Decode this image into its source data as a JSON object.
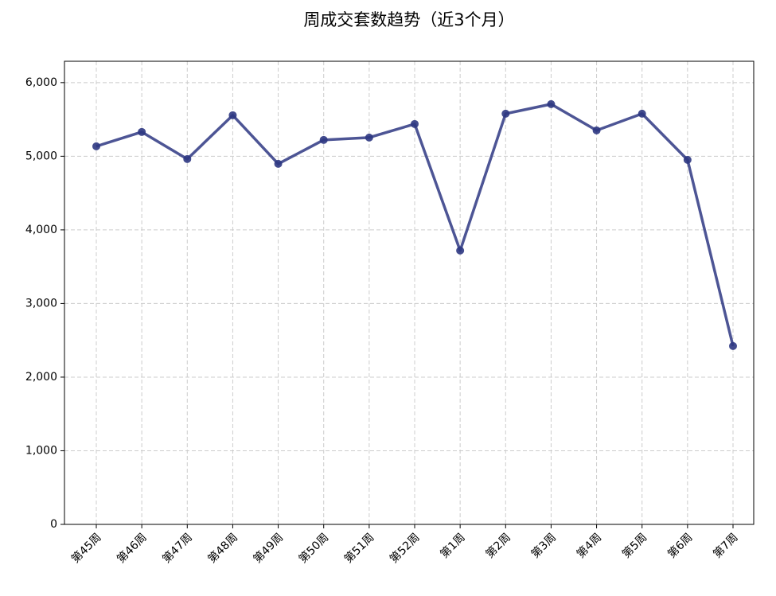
{
  "chart_data": {
    "type": "line",
    "title": "周成交套数趋势（近3个月）",
    "categories": [
      "第45周",
      "第46周",
      "第47周",
      "第48周",
      "第49周",
      "第50周",
      "第51周",
      "第52周",
      "第1周",
      "第2周",
      "第3周",
      "第4周",
      "第5周",
      "第6周",
      "第7周"
    ],
    "series": [
      {
        "name": "周成交套数",
        "color": "#2e3782",
        "values": [
          5135,
          5330,
          4962,
          5557,
          4897,
          5222,
          5254,
          5438,
          3719,
          5578,
          5708,
          5351,
          5578,
          4951,
          2422
        ]
      }
    ],
    "ylim": [
      0,
      6290
    ],
    "yticks": [
      0,
      {
        "value": 1000,
        "label": "1,000"
      },
      {
        "value": 2000,
        "label": "2,000"
      },
      {
        "value": 3000,
        "label": "3,000"
      },
      {
        "value": 4000,
        "label": "4,000"
      },
      {
        "value": 5000,
        "label": "5,000"
      },
      {
        "value": 6000,
        "label": "6,000"
      }
    ],
    "grid": true
  }
}
